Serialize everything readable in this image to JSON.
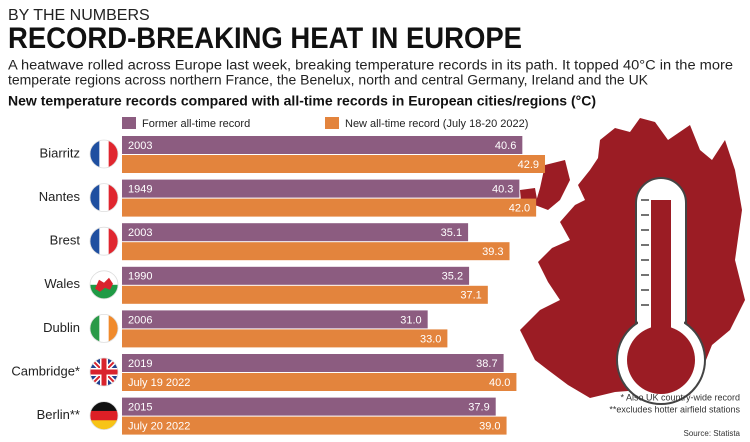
{
  "header": "BY THE NUMBERS",
  "chart_data": {
    "type": "bar",
    "orientation": "horizontal",
    "title": "RECORD-BREAKING HEAT IN EUROPE",
    "subtitle_lines": [
      "A heatwave rolled across Europe last week, breaking temperature records in its path. It topped 40°C in the more",
      "temperate regions across northern France, the Benelux, north and central Germany, Ireland and the UK"
    ],
    "chart_title": "New temperature records compared with all-time records in European cities/regions (°C)",
    "categories": [
      "Biarritz",
      "Nantes",
      "Brest",
      "Wales",
      "Dublin",
      "Cambridge*",
      "Berlin**"
    ],
    "series": [
      {
        "name": "Former all-time record",
        "color": "#8c5c80",
        "values": [
          40.6,
          40.3,
          35.1,
          35.2,
          31.0,
          38.7,
          37.9
        ],
        "value_labels": [
          "40.6",
          "40.3",
          "35.1",
          "35.2",
          "31.0",
          "38.7",
          "37.9"
        ],
        "bar_labels": [
          "2003",
          "1949",
          "2003",
          "1990",
          "2006",
          "2019",
          "2015"
        ]
      },
      {
        "name": "New all-time record (July 18-20 2022)",
        "color": "#e3843d",
        "values": [
          42.9,
          42.0,
          39.3,
          37.1,
          33.0,
          40.0,
          39.0
        ],
        "value_labels": [
          "42.9",
          "42.0",
          "39.3",
          "37.1",
          "33.0",
          "40.0",
          "39.0"
        ],
        "bar_labels": [
          null,
          null,
          null,
          null,
          null,
          "July 19 2022",
          "July 20 2022"
        ]
      }
    ],
    "xlim": [
      0,
      43
    ],
    "footnotes": [
      "* Also UK country-wide record",
      "**excludes hotter airfield stations"
    ],
    "source": "Source: Statista"
  }
}
